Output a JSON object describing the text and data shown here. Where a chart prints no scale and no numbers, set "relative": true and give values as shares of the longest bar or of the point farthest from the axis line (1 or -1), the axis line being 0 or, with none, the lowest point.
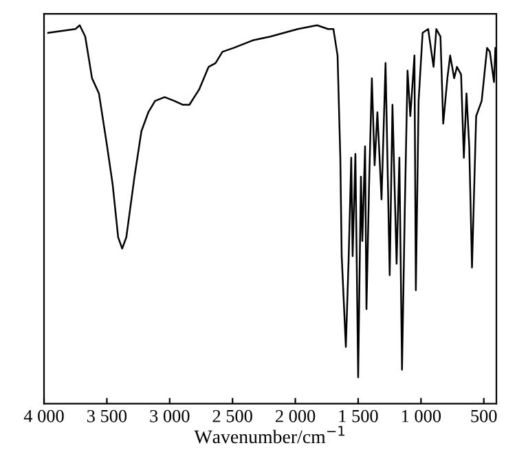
{
  "chart_data": {
    "type": "line",
    "relative": true,
    "xlabel": "Wavenumber/cm$^{−1}$",
    "color": "#000000",
    "grid": false,
    "legend": false,
    "marker": "none",
    "line_style": "solid",
    "xlim": [
      4000,
      400
    ],
    "xticks": [
      {
        "value": 4000,
        "label": "4 000"
      },
      {
        "value": 3500,
        "label": "3 500"
      },
      {
        "value": 3000,
        "label": "3 000"
      },
      {
        "value": 2500,
        "label": "2 500"
      },
      {
        "value": 2000,
        "label": "2 000"
      },
      {
        "value": 1500,
        "label": "1 500"
      },
      {
        "value": 1000,
        "label": "1 000"
      },
      500
    ],
    "x": [
      3967,
      3750,
      3716,
      3672,
      3618,
      3563,
      3498,
      3454,
      3410,
      3378,
      3345,
      3280,
      3225,
      3170,
      3116,
      3040,
      2963,
      2897,
      2843,
      2766,
      2690,
      2635,
      2580,
      2493,
      2340,
      2199,
      1980,
      1827,
      1740,
      1697,
      1664,
      1642,
      1631,
      1598,
      1576,
      1555,
      1544,
      1522,
      1500,
      1478,
      1467,
      1445,
      1434,
      1413,
      1391,
      1369,
      1347,
      1314,
      1282,
      1249,
      1227,
      1194,
      1172,
      1151,
      1129,
      1107,
      1085,
      1052,
      1041,
      1019,
      987,
      943,
      900,
      878,
      845,
      823,
      790,
      768,
      736,
      714,
      681,
      659,
      638,
      616,
      594,
      561,
      517,
      474,
      452,
      419,
      408
    ],
    "values": [
      0.98,
      0.99,
      1.0,
      0.97,
      0.86,
      0.82,
      0.68,
      0.58,
      0.44,
      0.41,
      0.44,
      0.6,
      0.72,
      0.77,
      0.8,
      0.81,
      0.8,
      0.79,
      0.79,
      0.83,
      0.89,
      0.9,
      0.93,
      0.94,
      0.96,
      0.97,
      0.99,
      1.0,
      0.99,
      0.99,
      0.92,
      0.65,
      0.39,
      0.15,
      0.38,
      0.65,
      0.39,
      0.66,
      0.07,
      0.6,
      0.43,
      0.68,
      0.25,
      0.58,
      0.86,
      0.63,
      0.77,
      0.54,
      0.9,
      0.34,
      0.79,
      0.37,
      0.65,
      0.09,
      0.51,
      0.88,
      0.76,
      0.92,
      0.3,
      0.8,
      0.98,
      0.99,
      0.89,
      0.99,
      0.97,
      0.74,
      0.86,
      0.92,
      0.86,
      0.89,
      0.87,
      0.65,
      0.82,
      0.68,
      0.36,
      0.76,
      0.8,
      0.94,
      0.93,
      0.85,
      0.94
    ]
  }
}
